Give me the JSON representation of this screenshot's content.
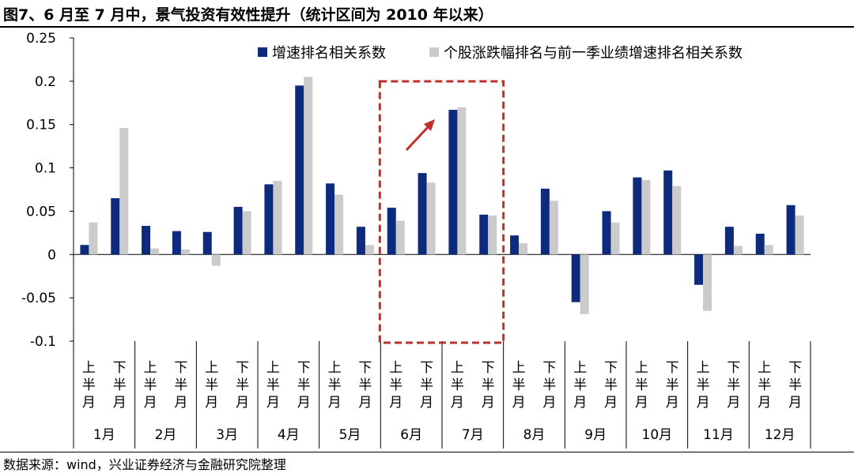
{
  "header": {
    "title": "图7、6 月至 7 月中，景气投资有效性提升（统计区间为 2010 年以来）"
  },
  "footer": {
    "source": "数据来源：wind，兴业证券经济与金融研究院整理"
  },
  "chart_data": {
    "type": "bar",
    "months": [
      "1月",
      "2月",
      "3月",
      "4月",
      "5月",
      "6月",
      "7月",
      "8月",
      "9月",
      "10月",
      "11月",
      "12月"
    ],
    "halves": [
      "上半月",
      "下半月"
    ],
    "categories": [
      "1月上半月",
      "1月下半月",
      "2月上半月",
      "2月下半月",
      "3月上半月",
      "3月下半月",
      "4月上半月",
      "4月下半月",
      "5月上半月",
      "5月下半月",
      "6月上半月",
      "6月下半月",
      "7月上半月",
      "7月下半月",
      "8月上半月",
      "8月下半月",
      "9月上半月",
      "9月下半月",
      "10月上半月",
      "10月下半月",
      "11月上半月",
      "11月下半月",
      "12月上半月",
      "12月下半月"
    ],
    "series": [
      {
        "name": "增速排名相关系数",
        "color": "#0e2a7c",
        "values": [
          0.011,
          0.065,
          0.033,
          0.027,
          0.026,
          0.055,
          0.081,
          0.195,
          0.082,
          0.032,
          0.054,
          0.094,
          0.167,
          0.046,
          0.022,
          0.076,
          -0.055,
          0.05,
          0.089,
          0.097,
          -0.035,
          0.032,
          0.024,
          0.057
        ]
      },
      {
        "name": "个股涨跌幅排名与前一季业绩增速排名相关系数",
        "color": "#cbcbcb",
        "values": [
          0.037,
          0.146,
          0.007,
          0.006,
          -0.013,
          0.05,
          0.085,
          0.205,
          0.069,
          0.011,
          0.039,
          0.083,
          0.17,
          0.045,
          0.013,
          0.062,
          -0.069,
          0.037,
          0.086,
          0.079,
          -0.065,
          0.01,
          0.011,
          0.045
        ]
      }
    ],
    "ylim": [
      -0.1,
      0.25
    ],
    "yticks": [
      -0.1,
      -0.05,
      0,
      0.05,
      0.1,
      0.15,
      0.2,
      0.25
    ],
    "ytick_labels": [
      "-0.1",
      "-0.05",
      "0",
      "0.05",
      "0.1",
      "0.15",
      "0.2",
      "0.25"
    ],
    "xlabel": "",
    "ylabel": "",
    "legend_position": "top",
    "highlight": {
      "months": [
        "6月",
        "7月"
      ],
      "box_color": "#c0302a",
      "arrow": "up-right",
      "arrow_color": "#c0302a"
    },
    "grid": false
  }
}
